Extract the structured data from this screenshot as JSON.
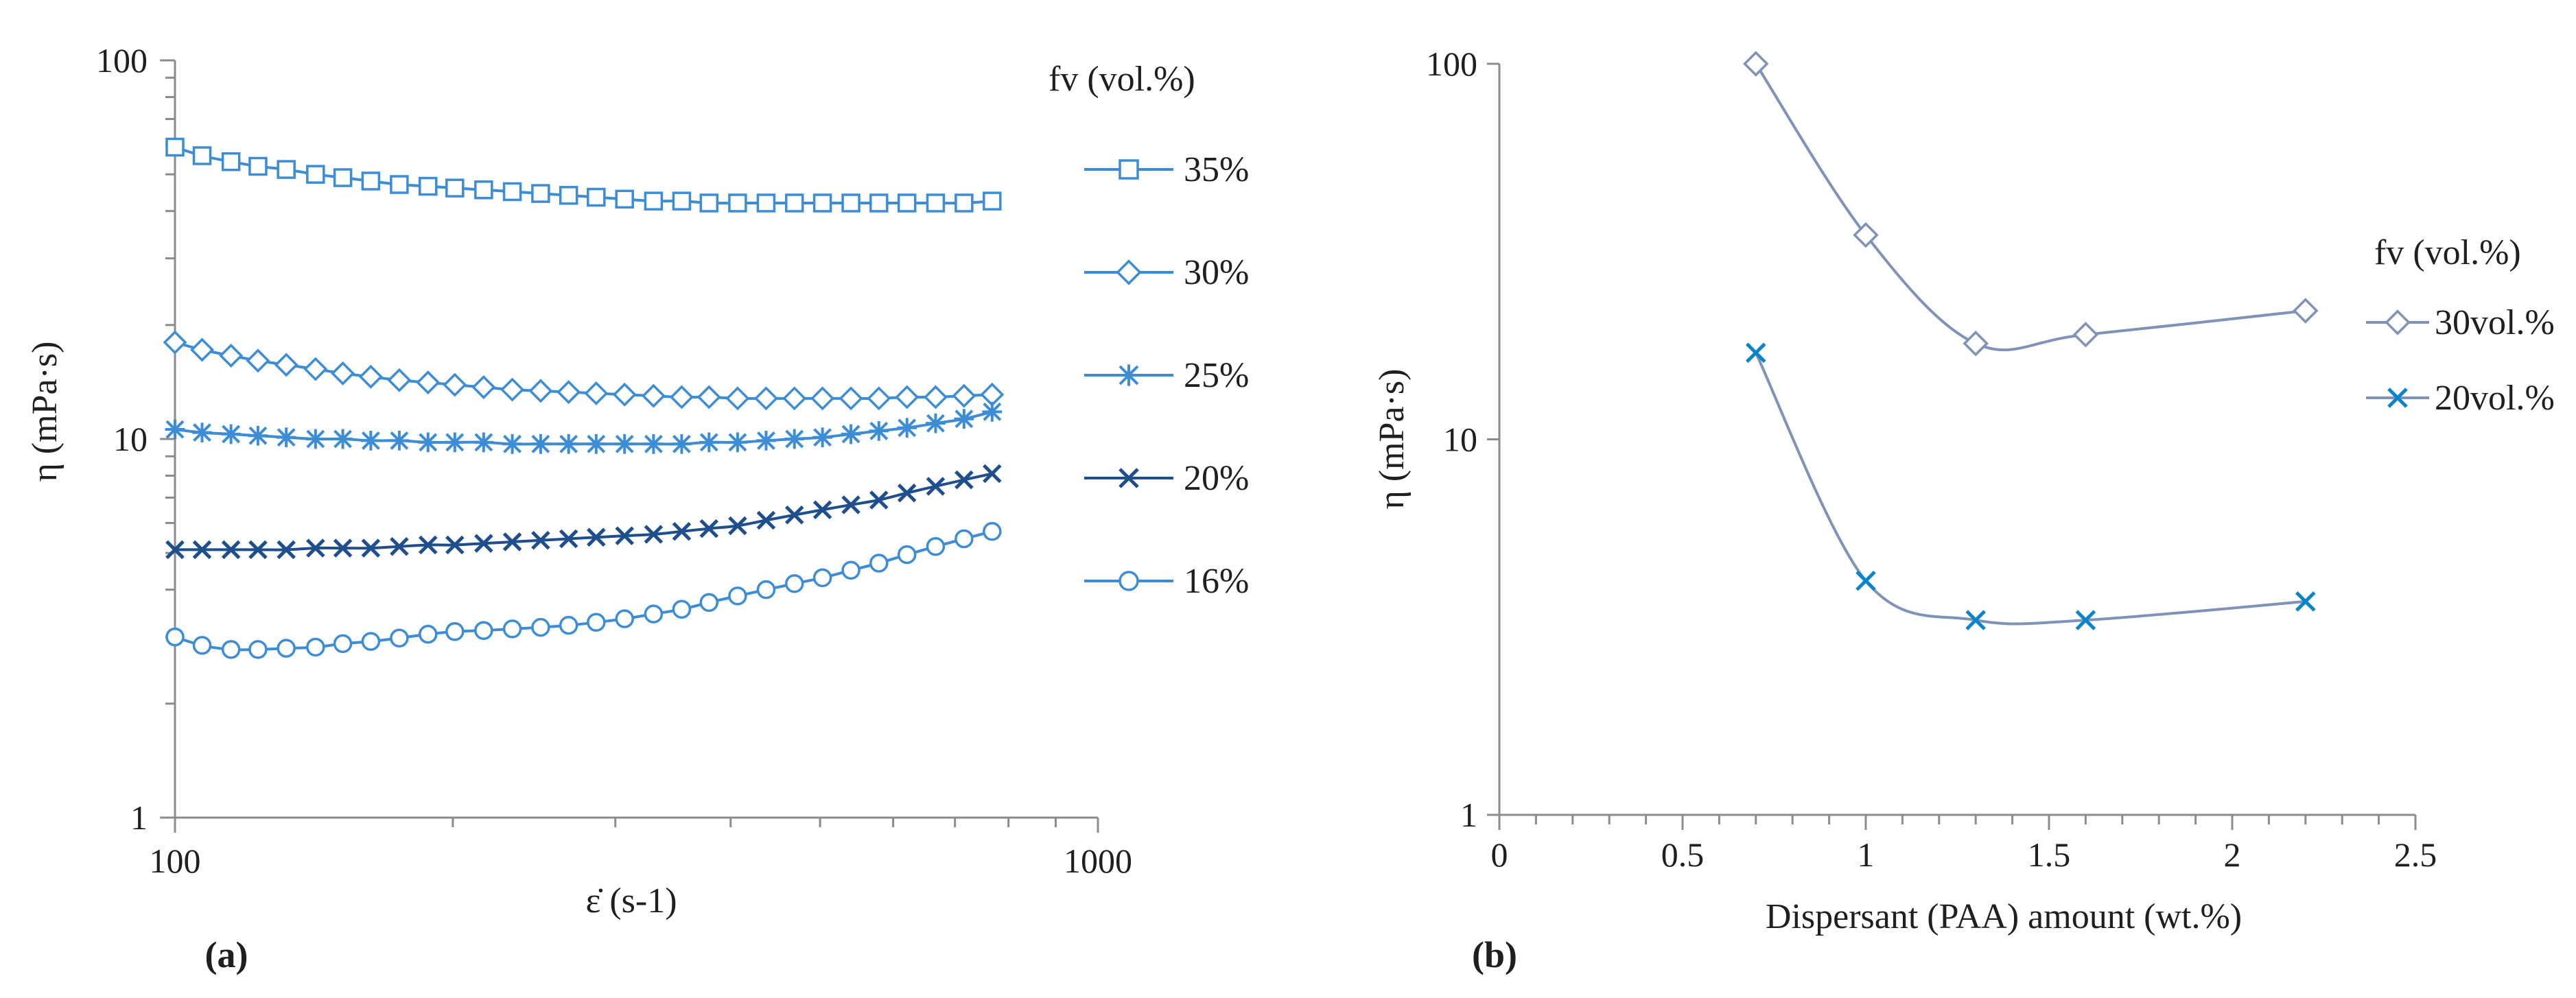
{
  "chart_data": [
    {
      "type": "line",
      "panel_label": "(a)",
      "xlabel": "ε̇ (s-1)",
      "ylabel": "η (mPa·s)",
      "xscale": "log",
      "yscale": "log",
      "xlim": [
        100,
        1000
      ],
      "ylim": [
        1,
        100
      ],
      "x_ticks": [
        "100",
        "1000"
      ],
      "y_ticks": [
        "1",
        "10",
        "100"
      ],
      "legend_title": "fv (vol.%)",
      "legend_position": "right",
      "x": [
        100,
        107,
        115,
        123,
        132,
        142,
        152,
        163,
        175,
        188,
        201,
        216,
        232,
        249,
        267,
        286,
        307,
        330,
        354,
        379,
        407,
        437,
        469,
        503,
        540,
        579,
        621,
        667,
        716,
        768
      ],
      "series": [
        {
          "name": "35%",
          "marker": "square",
          "color": "#3c8dd5",
          "values": [
            59,
            56,
            54,
            52.5,
            51.5,
            50,
            49,
            48,
            47,
            46.5,
            46,
            45.5,
            45,
            44.5,
            44,
            43.5,
            43,
            42.5,
            42.5,
            42,
            42,
            42,
            42,
            42,
            42,
            42,
            42,
            42,
            42,
            42.5
          ]
        },
        {
          "name": "30%",
          "marker": "diamond",
          "color": "#3c8dd5",
          "values": [
            18,
            17.2,
            16.6,
            16.1,
            15.7,
            15.3,
            14.9,
            14.6,
            14.3,
            14.1,
            13.9,
            13.7,
            13.5,
            13.4,
            13.3,
            13.2,
            13.1,
            13.0,
            12.9,
            12.9,
            12.8,
            12.8,
            12.8,
            12.8,
            12.8,
            12.8,
            12.9,
            12.9,
            13.0,
            13.1
          ]
        },
        {
          "name": "25%",
          "marker": "asterisk",
          "color": "#3c8dd5",
          "values": [
            10.6,
            10.4,
            10.3,
            10.2,
            10.1,
            10.0,
            10.0,
            9.9,
            9.9,
            9.8,
            9.8,
            9.8,
            9.7,
            9.7,
            9.7,
            9.7,
            9.7,
            9.7,
            9.7,
            9.8,
            9.8,
            9.9,
            10.0,
            10.1,
            10.3,
            10.5,
            10.7,
            11.0,
            11.3,
            11.8
          ]
        },
        {
          "name": "20%",
          "marker": "x",
          "color": "#1f4e8c",
          "values": [
            5.1,
            5.1,
            5.1,
            5.1,
            5.1,
            5.15,
            5.15,
            5.15,
            5.2,
            5.25,
            5.25,
            5.3,
            5.35,
            5.4,
            5.45,
            5.5,
            5.55,
            5.6,
            5.7,
            5.8,
            5.9,
            6.1,
            6.3,
            6.5,
            6.7,
            6.9,
            7.2,
            7.5,
            7.8,
            8.1
          ]
        },
        {
          "name": "16%",
          "marker": "circle",
          "color": "#3c8dd5",
          "values": [
            3.0,
            2.85,
            2.78,
            2.78,
            2.8,
            2.82,
            2.88,
            2.92,
            2.98,
            3.05,
            3.1,
            3.12,
            3.15,
            3.18,
            3.22,
            3.28,
            3.35,
            3.45,
            3.55,
            3.7,
            3.85,
            4.0,
            4.15,
            4.3,
            4.5,
            4.7,
            4.95,
            5.2,
            5.45,
            5.7
          ]
        }
      ]
    },
    {
      "type": "line",
      "panel_label": "(b)",
      "xlabel": "Dispersant (PAA) amount (wt.%)",
      "ylabel": "η (mPa·s)",
      "xscale": "linear",
      "yscale": "log",
      "xlim": [
        0,
        2.5
      ],
      "ylim": [
        1,
        100
      ],
      "x_ticks": [
        "0",
        "0.5",
        "1",
        "1.5",
        "2",
        "2.5"
      ],
      "y_ticks": [
        "1",
        "10",
        "100"
      ],
      "legend_title": "fv (vol.%)",
      "legend_position": "right",
      "series": [
        {
          "name": "30vol.%",
          "marker": "diamond",
          "color": "#7f93b8",
          "x": [
            0.7,
            1.0,
            1.3,
            1.6,
            2.2
          ],
          "values": [
            100,
            35,
            18,
            19,
            22
          ]
        },
        {
          "name": "20vol.%",
          "marker": "x",
          "color": "#0a84c8",
          "x": [
            0.7,
            1.0,
            1.3,
            1.6,
            2.2
          ],
          "values": [
            17,
            4.2,
            3.3,
            3.3,
            3.7
          ]
        }
      ]
    }
  ]
}
